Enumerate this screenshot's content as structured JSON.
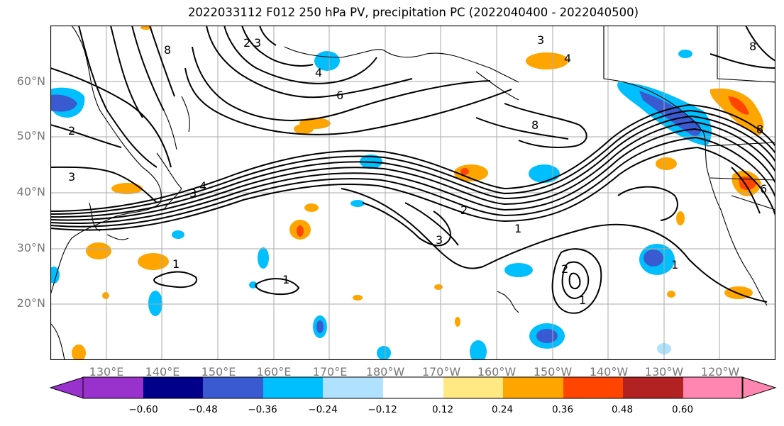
{
  "title": "2022033112 F012 250 hPa PV, precipitation PC (2022040400 - 2022040500)",
  "lat_labels": [
    "60°N",
    "50°N",
    "40°N",
    "30°N",
    "20°N"
  ],
  "lon_labels": [
    "130°E",
    "140°E",
    "150°E",
    "160°E",
    "170°E",
    "180°W",
    "170°W",
    "160°W",
    "150°W",
    "140°W",
    "130°W",
    "120°W"
  ],
  "contour_labels": [
    "8",
    "3",
    "2",
    "4",
    "6",
    "3",
    "4",
    "8",
    "2",
    "3",
    "3",
    "4",
    "2",
    "3",
    "1",
    "1",
    "1",
    "2",
    "1",
    "8",
    "1",
    "8",
    "6"
  ],
  "colorbar": {
    "colors": [
      "#9932cc",
      "#00008b",
      "#3a5ad1",
      "#00bfff",
      "#b0e2ff",
      "#ffffff",
      "#ffe983",
      "#ffa500",
      "#ff4500",
      "#b22222",
      "#ff86b0"
    ],
    "tick_labels": [
      "−0.60",
      "−0.48",
      "−0.36",
      "−0.24",
      "−0.12",
      "0.12",
      "0.24",
      "0.36",
      "0.48",
      "0.60"
    ]
  }
}
